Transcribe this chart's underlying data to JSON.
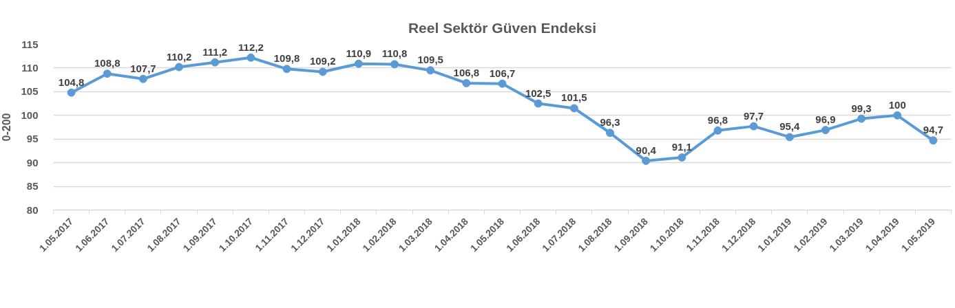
{
  "chart_data": {
    "type": "line",
    "title": "Reel Sektör Güven Endeksi",
    "ylabel": "0-200",
    "categories": [
      "1.05.2017",
      "1.06.2017",
      "1.07.2017",
      "1.08.2017",
      "1.09.2017",
      "1.10.2017",
      "1.11.2017",
      "1.12.2017",
      "1.01.2018",
      "1.02.2018",
      "1.03.2018",
      "1.04.2018",
      "1.05.2018",
      "1.06.2018",
      "1.07.2018",
      "1.08.2018",
      "1.09.2018",
      "1.10.2018",
      "1.11.2018",
      "1.12.2018",
      "1.01.2019",
      "1.02.2019",
      "1.03.2019",
      "1.04.2019",
      "1.05.2019"
    ],
    "series": [
      {
        "color": "#5b9bd5",
        "values": [
          104.8,
          108.8,
          107.7,
          110.2,
          111.2,
          112.2,
          109.8,
          109.2,
          110.9,
          110.8,
          109.5,
          106.8,
          106.7,
          102.5,
          101.5,
          96.3,
          90.4,
          91.1,
          96.8,
          97.7,
          95.4,
          96.9,
          99.3,
          100,
          94.7
        ],
        "value_labels": [
          "104,8",
          "108,8",
          "107,7",
          "110,2",
          "111,2",
          "112,2",
          "109,8",
          "109,2",
          "110,9",
          "110,8",
          "109,5",
          "106,8",
          "106,7",
          "102,5",
          "101,5",
          "96,3",
          "90,4",
          "91,1",
          "96,8",
          "97,7",
          "95,4",
          "96,9",
          "99,3",
          "100",
          "94,7"
        ]
      }
    ],
    "ylim": [
      80,
      115
    ],
    "yticks": [
      80,
      85,
      90,
      95,
      100,
      105,
      110,
      115
    ],
    "grid": "y",
    "marker": "circle",
    "line_style": "solid"
  }
}
